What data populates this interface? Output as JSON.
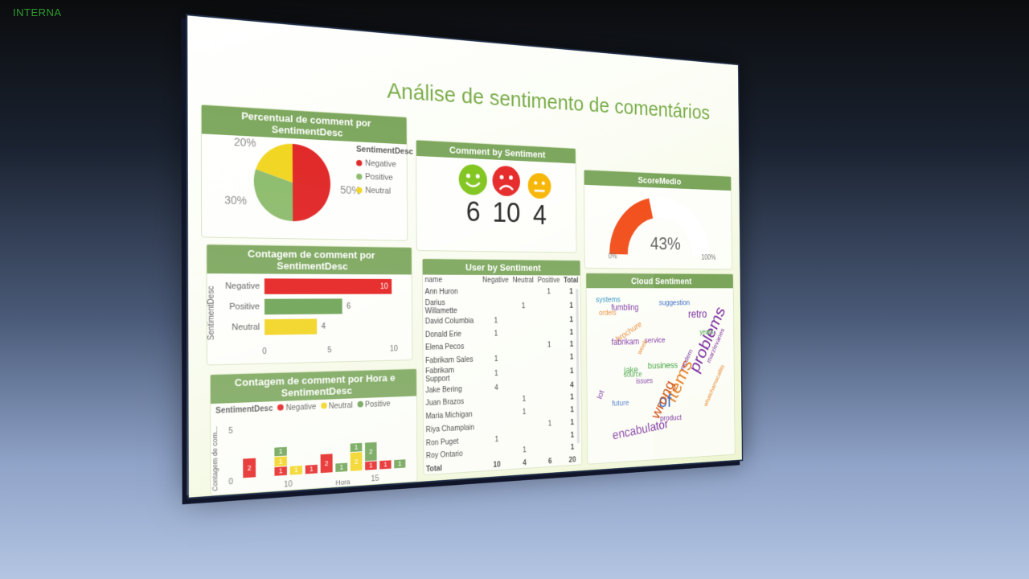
{
  "watermark": "INTERNA",
  "dashboard_title": "Análise de sentimento de comentários",
  "pie_card": {
    "title": "Percentual de comment por SentimentDesc",
    "legend_title": "SentimentDesc",
    "slices": [
      {
        "label": "Negative",
        "pct_label": "50%",
        "value": 50,
        "color": "#e02020"
      },
      {
        "label": "Positive",
        "pct_label": "30%",
        "value": 30,
        "color": "#8aba68"
      },
      {
        "label": "Neutral",
        "pct_label": "20%",
        "value": 20,
        "color": "#f2d41a"
      }
    ]
  },
  "faces_card": {
    "title": "Comment by Sentiment",
    "items": [
      {
        "mood": "positive",
        "count": "6",
        "color": "#7ec41a"
      },
      {
        "mood": "negative",
        "count": "10",
        "color": "#e52525"
      },
      {
        "mood": "neutral",
        "count": "4",
        "color": "#f7b500"
      }
    ]
  },
  "gauge_card": {
    "title": "ScoreMedio",
    "value_label": "43%",
    "value": 43,
    "min_label": "0%",
    "max_label": "100%",
    "color": "#f24a14"
  },
  "bar_card": {
    "title": "Contagem de comment por SentimentDesc",
    "axis_title": "SentimentDesc",
    "ticks": [
      "0",
      "5",
      "10"
    ],
    "bars": [
      {
        "label": "Negative",
        "value": 10,
        "value_label": "10",
        "color": "#e51c1c"
      },
      {
        "label": "Positive",
        "value": 6,
        "value_label": "6",
        "color": "#6aa150"
      },
      {
        "label": "Neutral",
        "value": 4,
        "value_label": "4",
        "color": "#f2d31a"
      }
    ]
  },
  "hour_card": {
    "title_line1": "Contagem de comment por Hora e",
    "title_line2": "SentimentDesc",
    "legend_title": "SentimentDesc",
    "legend": [
      {
        "label": "Negative",
        "color": "#e51c1c"
      },
      {
        "label": "Neutral",
        "color": "#f2d31a"
      },
      {
        "label": "Positive",
        "color": "#6aa150"
      }
    ],
    "y_label": "Contagem de com...",
    "x_label": "Hora",
    "y_ticks": [
      "5",
      "0"
    ],
    "x_ticks": [
      "10",
      "15"
    ]
  },
  "chart_data": {
    "type": "bar",
    "stacked": true,
    "xlabel": "Hora",
    "ylabel": "Contagem de com...",
    "ylim": [
      0,
      5
    ],
    "categories": [
      "8",
      "9",
      "10",
      "11",
      "12",
      "13",
      "14",
      "15",
      "16",
      "17",
      "18"
    ],
    "series": [
      {
        "name": "Negative",
        "color": "#e51c1c",
        "values": [
          2,
          0,
          1,
          0,
          1,
          2,
          0,
          0,
          1,
          1,
          0
        ]
      },
      {
        "name": "Neutral",
        "color": "#f2d31a",
        "values": [
          0,
          0,
          1,
          1,
          0,
          0,
          0,
          2,
          0,
          0,
          0
        ]
      },
      {
        "name": "Positive",
        "color": "#6aa150",
        "values": [
          0,
          0,
          1,
          0,
          0,
          0,
          1,
          1,
          2,
          0,
          1
        ]
      }
    ],
    "data_labels": [
      [
        "2"
      ],
      [],
      [
        "1",
        "1",
        "1"
      ],
      [
        "1"
      ],
      [
        "1"
      ],
      [
        "2"
      ],
      [
        "1"
      ],
      [
        "2",
        "1"
      ],
      [
        "1",
        "2"
      ],
      [
        "1"
      ],
      [
        "1"
      ]
    ]
  },
  "user_card": {
    "title": "User by Sentiment",
    "columns": [
      "name",
      "Negative",
      "Neutral",
      "Positive",
      "Total"
    ],
    "rows": [
      [
        "Ann Huron",
        "",
        "",
        "1",
        "1"
      ],
      [
        "Darius Willamette",
        "",
        "1",
        "",
        "1"
      ],
      [
        "David Columbia",
        "1",
        "",
        "",
        "1"
      ],
      [
        "Donald Erie",
        "1",
        "",
        "",
        "1"
      ],
      [
        "Elena Pecos",
        "",
        "",
        "1",
        "1"
      ],
      [
        "Fabrikam Sales",
        "1",
        "",
        "",
        "1"
      ],
      [
        "Fabrikam Support",
        "1",
        "",
        "",
        "1"
      ],
      [
        "Jake Bering",
        "4",
        "",
        "",
        "4"
      ],
      [
        "Juan Brazos",
        "",
        "1",
        "",
        "1"
      ],
      [
        "Maria Michigan",
        "",
        "1",
        "",
        "1"
      ],
      [
        "Riya Champlain",
        "",
        "",
        "1",
        "1"
      ],
      [
        "Ron Puget",
        "1",
        "",
        "",
        "1"
      ],
      [
        "Roy Ontario",
        "",
        "1",
        "",
        "1"
      ]
    ],
    "total_row": [
      "Total",
      "10",
      "4",
      "6",
      "20"
    ]
  },
  "cloud_card": {
    "title": "Cloud Sentiment",
    "words": [
      {
        "text": "problems",
        "color": "#7b2fa0"
      },
      {
        "text": "items",
        "color": "#e8842a"
      },
      {
        "text": "of",
        "color": "#3f6fc4"
      },
      {
        "text": "encabulator",
        "color": "#7b2fa0"
      },
      {
        "text": "wrong",
        "color": "#d0541a"
      },
      {
        "text": "retro",
        "color": "#7b2fa0"
      },
      {
        "text": "fumbling",
        "color": "#7b2fa0"
      },
      {
        "text": "brochure",
        "color": "#e8842a"
      },
      {
        "text": "business",
        "color": "#3fa03f"
      },
      {
        "text": "jake",
        "color": "#3fa03f"
      },
      {
        "text": "fabrikam",
        "color": "#7b2fa0"
      },
      {
        "text": "suggestion",
        "color": "#3f6fc4"
      },
      {
        "text": "service",
        "color": "#7b2fa0"
      },
      {
        "text": "systems",
        "color": "#2a8fc4"
      },
      {
        "text": "product",
        "color": "#7b2fa0"
      },
      {
        "text": "future",
        "color": "#3f6fc4"
      },
      {
        "text": "week",
        "color": "#e8842a"
      },
      {
        "text": "modern",
        "color": "#7b2fa0"
      },
      {
        "text": "marzlevanes",
        "color": "#7b2fa0"
      },
      {
        "text": "years",
        "color": "#3fa03f"
      },
      {
        "text": "source",
        "color": "#3fa03f"
      },
      {
        "text": "issues",
        "color": "#7b2fa0"
      },
      {
        "text": "lot",
        "color": "#7b2fa0"
      },
      {
        "text": "orders",
        "color": "#e8842a"
      },
      {
        "text": "whatchamacallits",
        "color": "#e8842a"
      }
    ]
  }
}
